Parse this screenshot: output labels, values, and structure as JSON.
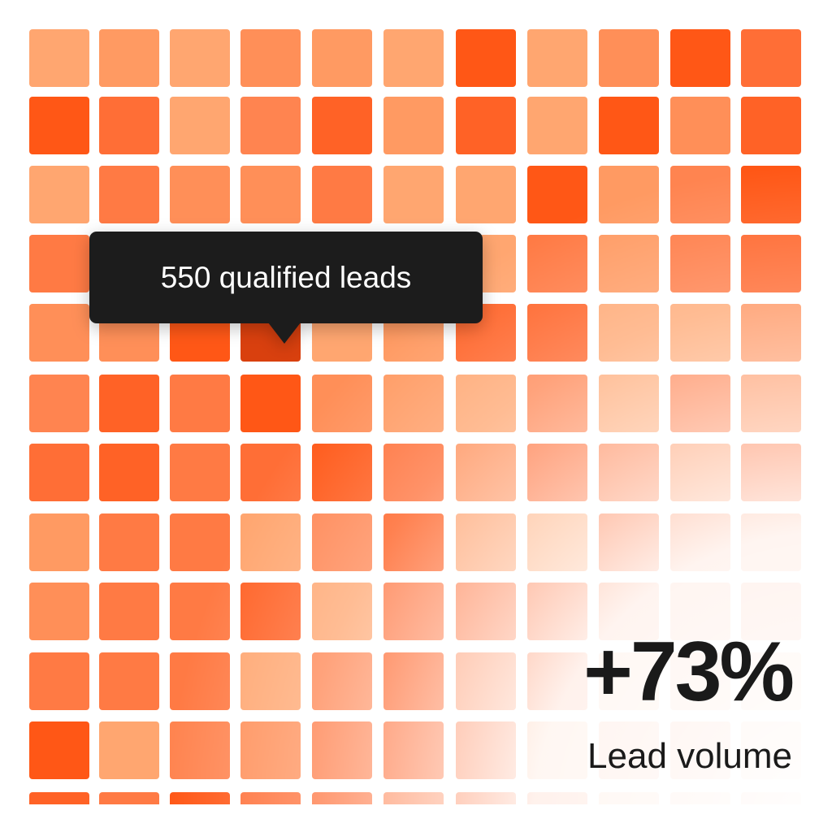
{
  "tooltip": {
    "label": "550 qualified leads"
  },
  "stat": {
    "value": "+73%",
    "label": "Lead volume"
  }
}
